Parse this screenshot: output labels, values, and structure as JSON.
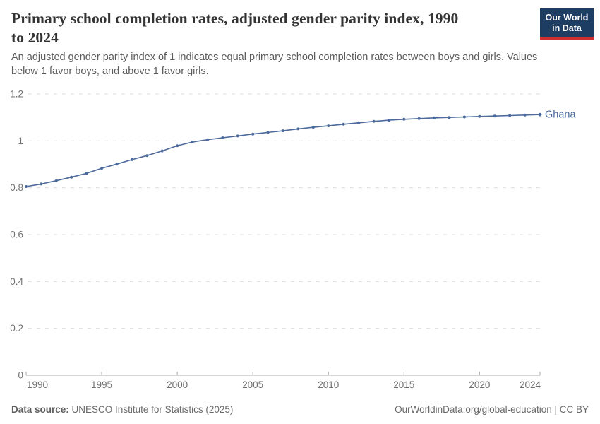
{
  "header": {
    "title_lines": [
      "Primary school completion rates, adjusted gender parity index, 1990",
      "to 2024"
    ],
    "subtitle_lines": [
      "An adjusted gender parity index of 1 indicates equal primary school completion rates between boys and girls. Values",
      "below 1 favor boys, and above 1 favor girls."
    ],
    "logo_lines": [
      "Our World",
      "in Data"
    ]
  },
  "footer": {
    "datasource_label": "Data source:",
    "datasource_value": "UNESCO Institute for Statistics (2025)",
    "link": "OurWorldinData.org/global-education | CC BY"
  },
  "colors": {
    "series_blue": "#4C6A9C",
    "logo_background": "#1d3d63",
    "logo_stripe": "#cf2f2f",
    "gridline": "#dcdcdc",
    "axis": "#a8a8a8"
  },
  "chart_data": {
    "type": "line",
    "title": "Primary school completion rates, adjusted gender parity index, 1990 to 2024",
    "subtitle": "An adjusted gender parity index of 1 indicates equal primary school completion rates between boys and girls. Values below 1 favor boys, and above 1 favor girls.",
    "xlabel": "",
    "ylabel": "",
    "xlim": [
      1990,
      2024
    ],
    "ylim": [
      0,
      1.2
    ],
    "grid": "horizontal-dashed",
    "legend_position": "end-of-line-label",
    "x_ticks": [
      1990,
      1995,
      2000,
      2005,
      2010,
      2015,
      2020,
      2024
    ],
    "y_ticks": [
      0,
      0.2,
      0.4,
      0.6,
      0.8,
      1,
      1.2
    ],
    "y_tick_labels": [
      "0",
      "0.2",
      "0.4",
      "0.6",
      "0.8",
      "1",
      "1.2"
    ],
    "series": [
      {
        "name": "Ghana",
        "color": "#4C6A9C",
        "x": [
          1990,
          1991,
          1992,
          1993,
          1994,
          1995,
          1996,
          1997,
          1998,
          1999,
          2000,
          2001,
          2002,
          2003,
          2004,
          2005,
          2006,
          2007,
          2008,
          2009,
          2010,
          2011,
          2012,
          2013,
          2014,
          2015,
          2016,
          2017,
          2018,
          2019,
          2020,
          2021,
          2022,
          2023,
          2024
        ],
        "values": [
          0.805,
          0.816,
          0.83,
          0.845,
          0.861,
          0.883,
          0.901,
          0.92,
          0.937,
          0.957,
          0.979,
          0.995,
          1.005,
          1.013,
          1.021,
          1.029,
          1.036,
          1.043,
          1.051,
          1.058,
          1.064,
          1.071,
          1.077,
          1.083,
          1.088,
          1.092,
          1.095,
          1.098,
          1.1,
          1.102,
          1.104,
          1.106,
          1.108,
          1.11,
          1.112
        ]
      }
    ]
  }
}
